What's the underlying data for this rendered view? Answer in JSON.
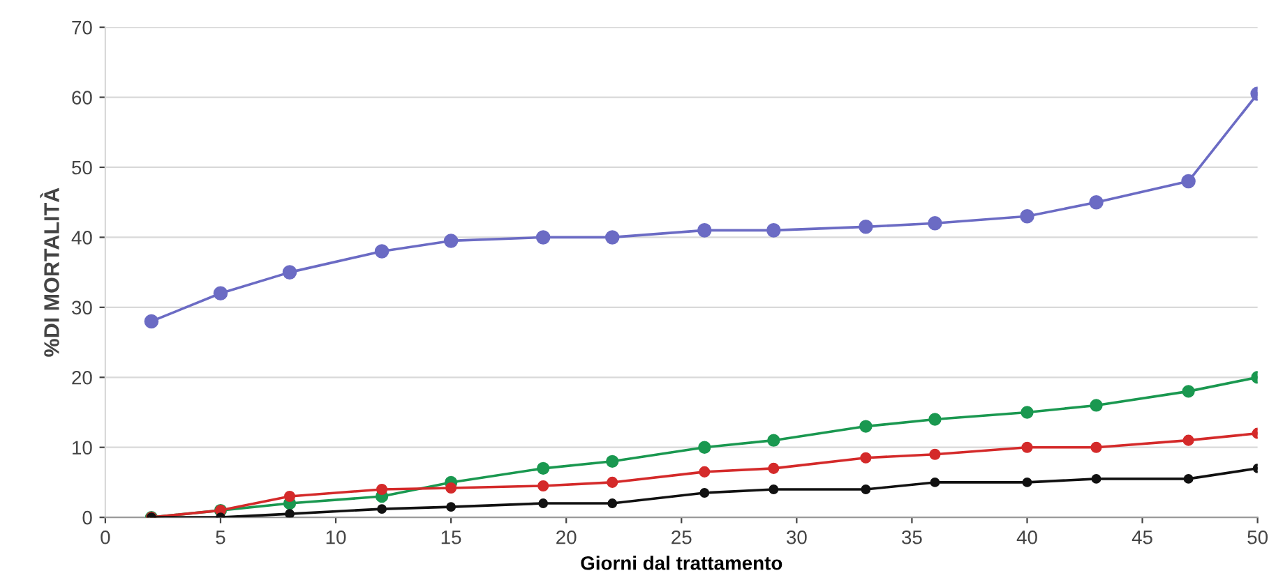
{
  "chart_data": {
    "type": "line",
    "xlabel": "Giorni dal trattamento",
    "ylabel": "%DI MORTALITÀ",
    "x": [
      2,
      5,
      8,
      12,
      15,
      19,
      22,
      26,
      29,
      33,
      36,
      40,
      43,
      47,
      50
    ],
    "series": [
      {
        "color": "#6b6bc4",
        "values": [
          28,
          32,
          35,
          38,
          39.5,
          40,
          40,
          41,
          41,
          41.5,
          42,
          43,
          45,
          48,
          60.5
        ]
      },
      {
        "color": "#1a9850",
        "values": [
          0,
          1,
          2,
          3,
          5,
          7,
          8,
          10,
          11,
          13,
          14,
          15,
          16,
          18,
          20
        ]
      },
      {
        "color": "#d42a2a",
        "values": [
          0,
          1,
          3,
          4,
          4.2,
          4.5,
          5,
          6.5,
          7,
          8.5,
          9,
          10,
          10,
          11,
          12
        ]
      },
      {
        "color": "#111111",
        "values": [
          0,
          0,
          0.5,
          1.2,
          1.5,
          2,
          2,
          3.5,
          4,
          4,
          5,
          5,
          5.5,
          5.5,
          7
        ]
      }
    ],
    "xlim": [
      0,
      50
    ],
    "xticks": [
      0,
      5,
      10,
      15,
      20,
      25,
      30,
      35,
      40,
      45,
      50
    ],
    "ylim": [
      0,
      70
    ],
    "yticks": [
      0,
      10,
      20,
      30,
      40,
      50,
      60,
      70
    ],
    "grid": "y",
    "marker": "circle",
    "line_style": "solid"
  }
}
